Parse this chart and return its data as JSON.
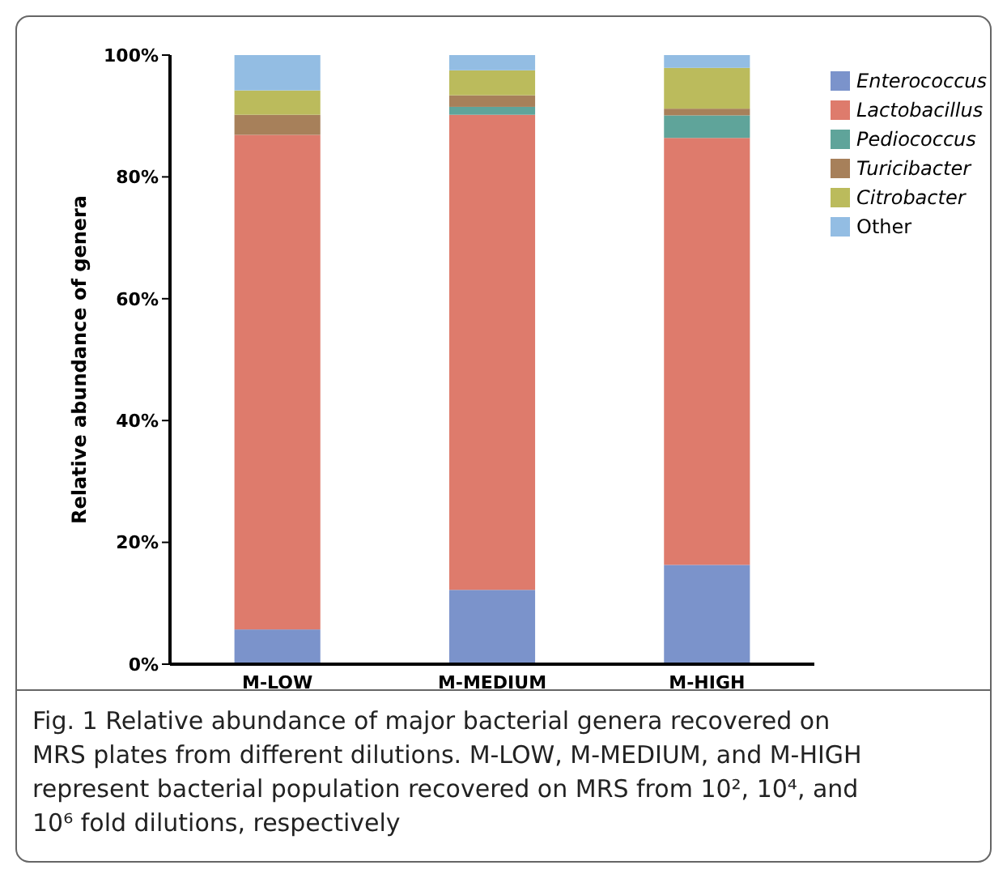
{
  "chart_data": {
    "type": "bar",
    "stacked": true,
    "ylabel": "Relative abundance of genera",
    "categories": [
      "M-LOW",
      "M-MEDIUM",
      "M-HIGH"
    ],
    "series": [
      {
        "name": "Enterococcus",
        "color": "#7b93cb",
        "values": [
          5.7,
          12.2,
          16.3
        ]
      },
      {
        "name": "Lactobacillus",
        "color": "#de7b6c",
        "values": [
          81.2,
          78.0,
          70.1
        ]
      },
      {
        "name": "Pediococcus",
        "color": "#5fa49a",
        "values": [
          0,
          1.3,
          3.7
        ]
      },
      {
        "name": "Turicibacter",
        "color": "#a7805a",
        "values": [
          3.3,
          1.9,
          1.1
        ]
      },
      {
        "name": "Citrobacter",
        "color": "#bbbb5c",
        "values": [
          4.0,
          4.1,
          6.7
        ]
      },
      {
        "name": "Other",
        "color": "#93bde3",
        "values": [
          5.8,
          2.5,
          2.1
        ]
      }
    ],
    "ylim": [
      0,
      100
    ],
    "yticks": [
      {
        "value": 0,
        "label": "0%"
      },
      {
        "value": 20,
        "label": "20%"
      },
      {
        "value": 40,
        "label": "40%"
      },
      {
        "value": 60,
        "label": "60%"
      },
      {
        "value": 80,
        "label": "80%"
      },
      {
        "value": 100,
        "label": "100%"
      }
    ],
    "grid": false,
    "legend": "top right",
    "annotations": [
      "Fig. 1  Relative abundance of major bacterial genera recovered on MRS plates from different dilutions. M-LOW, M-MEDIUM, and M-HIGH represent bacterial population recovered on MRS from 10², 10⁴, and 10⁶ fold dilutions, respectively"
    ]
  }
}
